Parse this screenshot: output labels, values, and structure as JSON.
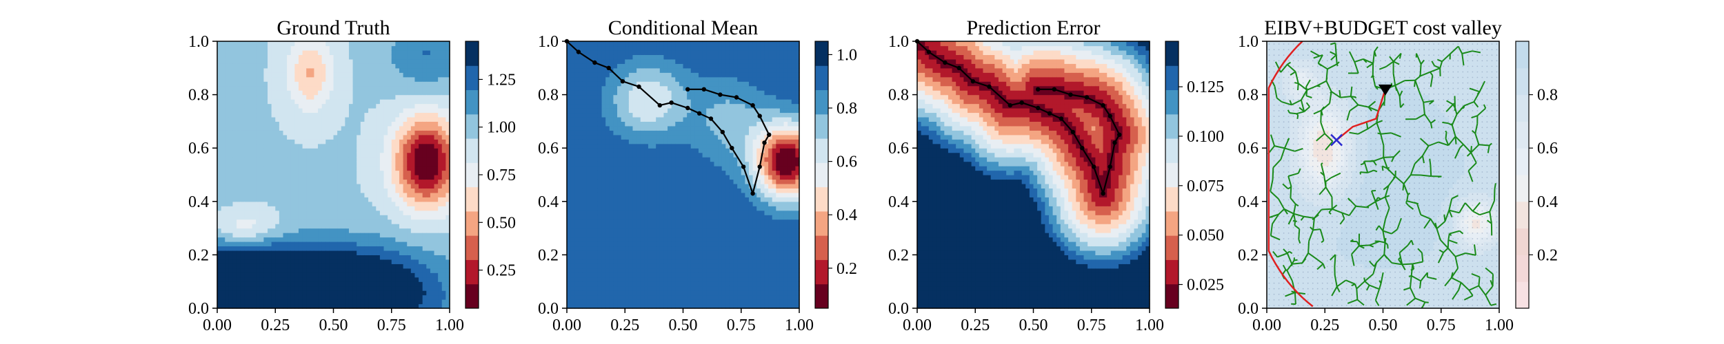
{
  "chart_data": [
    {
      "type": "heatmap",
      "title": "Ground Truth",
      "xlim": [
        0,
        1
      ],
      "ylim": [
        0,
        1
      ],
      "xticks": [
        "0.00",
        "0.25",
        "0.50",
        "0.75",
        "1.00"
      ],
      "yticks": [
        "0.0",
        "0.2",
        "0.4",
        "0.6",
        "0.8",
        "1.0"
      ],
      "colormap": "RdBu (discrete)",
      "colorbar": {
        "min": 0.05,
        "max": 1.45,
        "ticks": [
          "0.25",
          "0.50",
          "0.75",
          "1.00",
          "1.25"
        ],
        "tick_values": [
          0.25,
          0.5,
          0.75,
          1.0,
          1.25
        ]
      },
      "field": {
        "base": 0.95,
        "bumps": [
          {
            "x": 0.9,
            "y": 0.55,
            "amp": -0.9,
            "sx": 0.1,
            "sy": 0.12
          },
          {
            "x": 0.4,
            "y": 0.88,
            "amp": -0.4,
            "sx": 0.07,
            "sy": 0.1
          },
          {
            "x": 0.12,
            "y": 0.3,
            "amp": -0.3,
            "sx": 0.1,
            "sy": 0.05
          },
          {
            "x": 0.3,
            "y": 0.1,
            "amp": 0.55,
            "sx": 0.25,
            "sy": 0.1
          },
          {
            "x": 0.65,
            "y": 0.05,
            "amp": 0.55,
            "sx": 0.25,
            "sy": 0.12
          },
          {
            "x": 0.05,
            "y": 0.05,
            "amp": 0.45,
            "sx": 0.15,
            "sy": 0.15
          },
          {
            "x": 0.9,
            "y": 0.95,
            "amp": 0.25,
            "sx": 0.12,
            "sy": 0.1
          }
        ]
      }
    },
    {
      "type": "heatmap",
      "title": "Conditional Mean",
      "xlim": [
        0,
        1
      ],
      "ylim": [
        0,
        1
      ],
      "xticks": [
        "0.00",
        "0.25",
        "0.50",
        "0.75",
        "1.00"
      ],
      "yticks": [
        "0.0",
        "0.2",
        "0.4",
        "0.6",
        "0.8",
        "1.0"
      ],
      "colormap": "RdBu (discrete)",
      "colorbar": {
        "min": 0.05,
        "max": 1.05,
        "ticks": [
          "0.2",
          "0.4",
          "0.6",
          "0.8",
          "1.0"
        ],
        "tick_values": [
          0.2,
          0.4,
          0.6,
          0.8,
          1.0
        ]
      },
      "field": {
        "base": 0.95,
        "bumps": [
          {
            "x": 0.95,
            "y": 0.55,
            "amp": -0.9,
            "sx": 0.1,
            "sy": 0.1
          },
          {
            "x": 0.35,
            "y": 0.78,
            "amp": -0.35,
            "sx": 0.12,
            "sy": 0.1
          },
          {
            "x": 0.7,
            "y": 0.7,
            "amp": -0.2,
            "sx": 0.12,
            "sy": 0.12
          }
        ]
      },
      "path": [
        [
          0.0,
          1.0
        ],
        [
          0.05,
          0.96
        ],
        [
          0.12,
          0.92
        ],
        [
          0.18,
          0.9
        ],
        [
          0.24,
          0.85
        ],
        [
          0.31,
          0.83
        ],
        [
          0.4,
          0.76
        ],
        [
          0.45,
          0.77
        ],
        [
          0.52,
          0.75
        ],
        [
          0.57,
          0.73
        ],
        [
          0.62,
          0.71
        ],
        [
          0.67,
          0.66
        ],
        [
          0.71,
          0.6
        ],
        [
          0.76,
          0.53
        ],
        [
          0.8,
          0.43
        ],
        [
          0.83,
          0.53
        ],
        [
          0.85,
          0.62
        ],
        [
          0.87,
          0.65
        ],
        [
          0.83,
          0.72
        ],
        [
          0.8,
          0.76
        ],
        [
          0.73,
          0.79
        ],
        [
          0.66,
          0.8
        ],
        [
          0.59,
          0.82
        ],
        [
          0.52,
          0.82
        ]
      ]
    },
    {
      "type": "heatmap",
      "title": "Prediction Error",
      "xlim": [
        0,
        1
      ],
      "ylim": [
        0,
        1
      ],
      "xticks": [
        "0.00",
        "0.25",
        "0.50",
        "0.75",
        "1.00"
      ],
      "yticks": [
        "0.0",
        "0.2",
        "0.4",
        "0.6",
        "0.8",
        "1.0"
      ],
      "colormap": "RdBu (discrete)",
      "colorbar": {
        "min": 0.013,
        "max": 0.148,
        "ticks": [
          "0.025",
          "0.050",
          "0.075",
          "0.100",
          "0.125"
        ],
        "tick_values": [
          0.025,
          0.05,
          0.075,
          0.1,
          0.125
        ]
      },
      "field": {
        "mode": "path-distance",
        "near": 0.02,
        "far": 0.145,
        "scale": 0.3,
        "power": 1.1
      },
      "path": [
        [
          0.0,
          1.0
        ],
        [
          0.05,
          0.96
        ],
        [
          0.12,
          0.92
        ],
        [
          0.18,
          0.9
        ],
        [
          0.24,
          0.85
        ],
        [
          0.31,
          0.83
        ],
        [
          0.4,
          0.76
        ],
        [
          0.45,
          0.77
        ],
        [
          0.52,
          0.75
        ],
        [
          0.57,
          0.73
        ],
        [
          0.62,
          0.71
        ],
        [
          0.67,
          0.66
        ],
        [
          0.71,
          0.6
        ],
        [
          0.76,
          0.53
        ],
        [
          0.8,
          0.43
        ],
        [
          0.83,
          0.53
        ],
        [
          0.85,
          0.62
        ],
        [
          0.87,
          0.65
        ],
        [
          0.83,
          0.72
        ],
        [
          0.8,
          0.76
        ],
        [
          0.73,
          0.79
        ],
        [
          0.66,
          0.8
        ],
        [
          0.59,
          0.82
        ],
        [
          0.52,
          0.82
        ]
      ]
    },
    {
      "type": "heatmap",
      "title": "EIBV+BUDGET cost valley",
      "xlim": [
        0,
        1
      ],
      "ylim": [
        0,
        1
      ],
      "xticks": [
        "0.00",
        "0.25",
        "0.50",
        "0.75",
        "1.00"
      ],
      "yticks": [
        "0.0",
        "0.2",
        "0.4",
        "0.6",
        "0.8",
        "1.0"
      ],
      "colormap": "RdBu (light, discrete)",
      "colorbar": {
        "min": 0.0,
        "max": 1.0,
        "ticks": [
          "0.2",
          "0.4",
          "0.6",
          "0.8"
        ],
        "tick_values": [
          0.2,
          0.4,
          0.6,
          0.8
        ]
      },
      "field": {
        "base": 0.85,
        "bumps": [
          {
            "x": 0.25,
            "y": 0.6,
            "amp": -0.6,
            "sx": 0.08,
            "sy": 0.12
          },
          {
            "x": 0.9,
            "y": 0.32,
            "amp": -0.5,
            "sx": 0.06,
            "sy": 0.06
          },
          {
            "x": 0.15,
            "y": 0.85,
            "amp": -0.3,
            "sx": 0.05,
            "sy": 0.05
          },
          {
            "x": 0.5,
            "y": 0.5,
            "amp": 0.1,
            "sx": 0.3,
            "sy": 0.3
          }
        ]
      },
      "start": [
        0.3,
        0.63
      ],
      "goal": [
        0.51,
        0.82
      ],
      "best_path": [
        [
          0.3,
          0.63
        ],
        [
          0.37,
          0.68
        ],
        [
          0.47,
          0.71
        ],
        [
          0.51,
          0.82
        ]
      ],
      "budget_arc": {
        "center": [
          0.51,
          0.52
        ],
        "radius": 0.58
      },
      "tree_seed": 7
    }
  ]
}
